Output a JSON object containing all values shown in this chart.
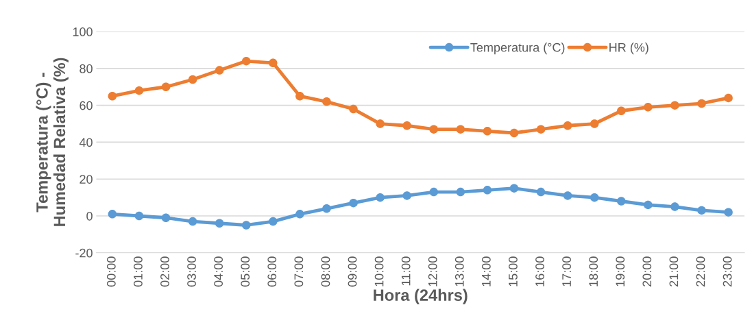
{
  "chart_data": {
    "type": "line",
    "xlabel": "Hora (24hrs)",
    "ylabel": "Temperatura (°C) -\nHumedad Relativa (%)",
    "categories": [
      "00:00",
      "01:00",
      "02:00",
      "03:00",
      "04:00",
      "05:00",
      "06:00",
      "07:00",
      "08:00",
      "09:00",
      "10:00",
      "11:00",
      "12:00",
      "13:00",
      "14:00",
      "15:00",
      "16:00",
      "17:00",
      "18:00",
      "19:00",
      "20:00",
      "21:00",
      "22:00",
      "23:00"
    ],
    "series": [
      {
        "name": "Temperatura (°C)",
        "color": "#5b9bd5",
        "values": [
          1,
          0,
          -1,
          -3,
          -4,
          -5,
          -3,
          1,
          4,
          7,
          10,
          11,
          13,
          13,
          14,
          15,
          13,
          11,
          10,
          8,
          6,
          5,
          3,
          2
        ]
      },
      {
        "name": "HR (%)",
        "color": "#ed7d31",
        "values": [
          65,
          68,
          70,
          74,
          79,
          84,
          83,
          65,
          62,
          58,
          50,
          49,
          47,
          47,
          46,
          45,
          47,
          49,
          50,
          57,
          59,
          60,
          61,
          64
        ]
      }
    ],
    "ylim": [
      -20,
      100
    ],
    "yticks": [
      -20,
      0,
      20,
      40,
      60,
      80,
      100
    ],
    "grid": "y",
    "legend": "top right",
    "marker": "circle",
    "line_style": "solid"
  }
}
